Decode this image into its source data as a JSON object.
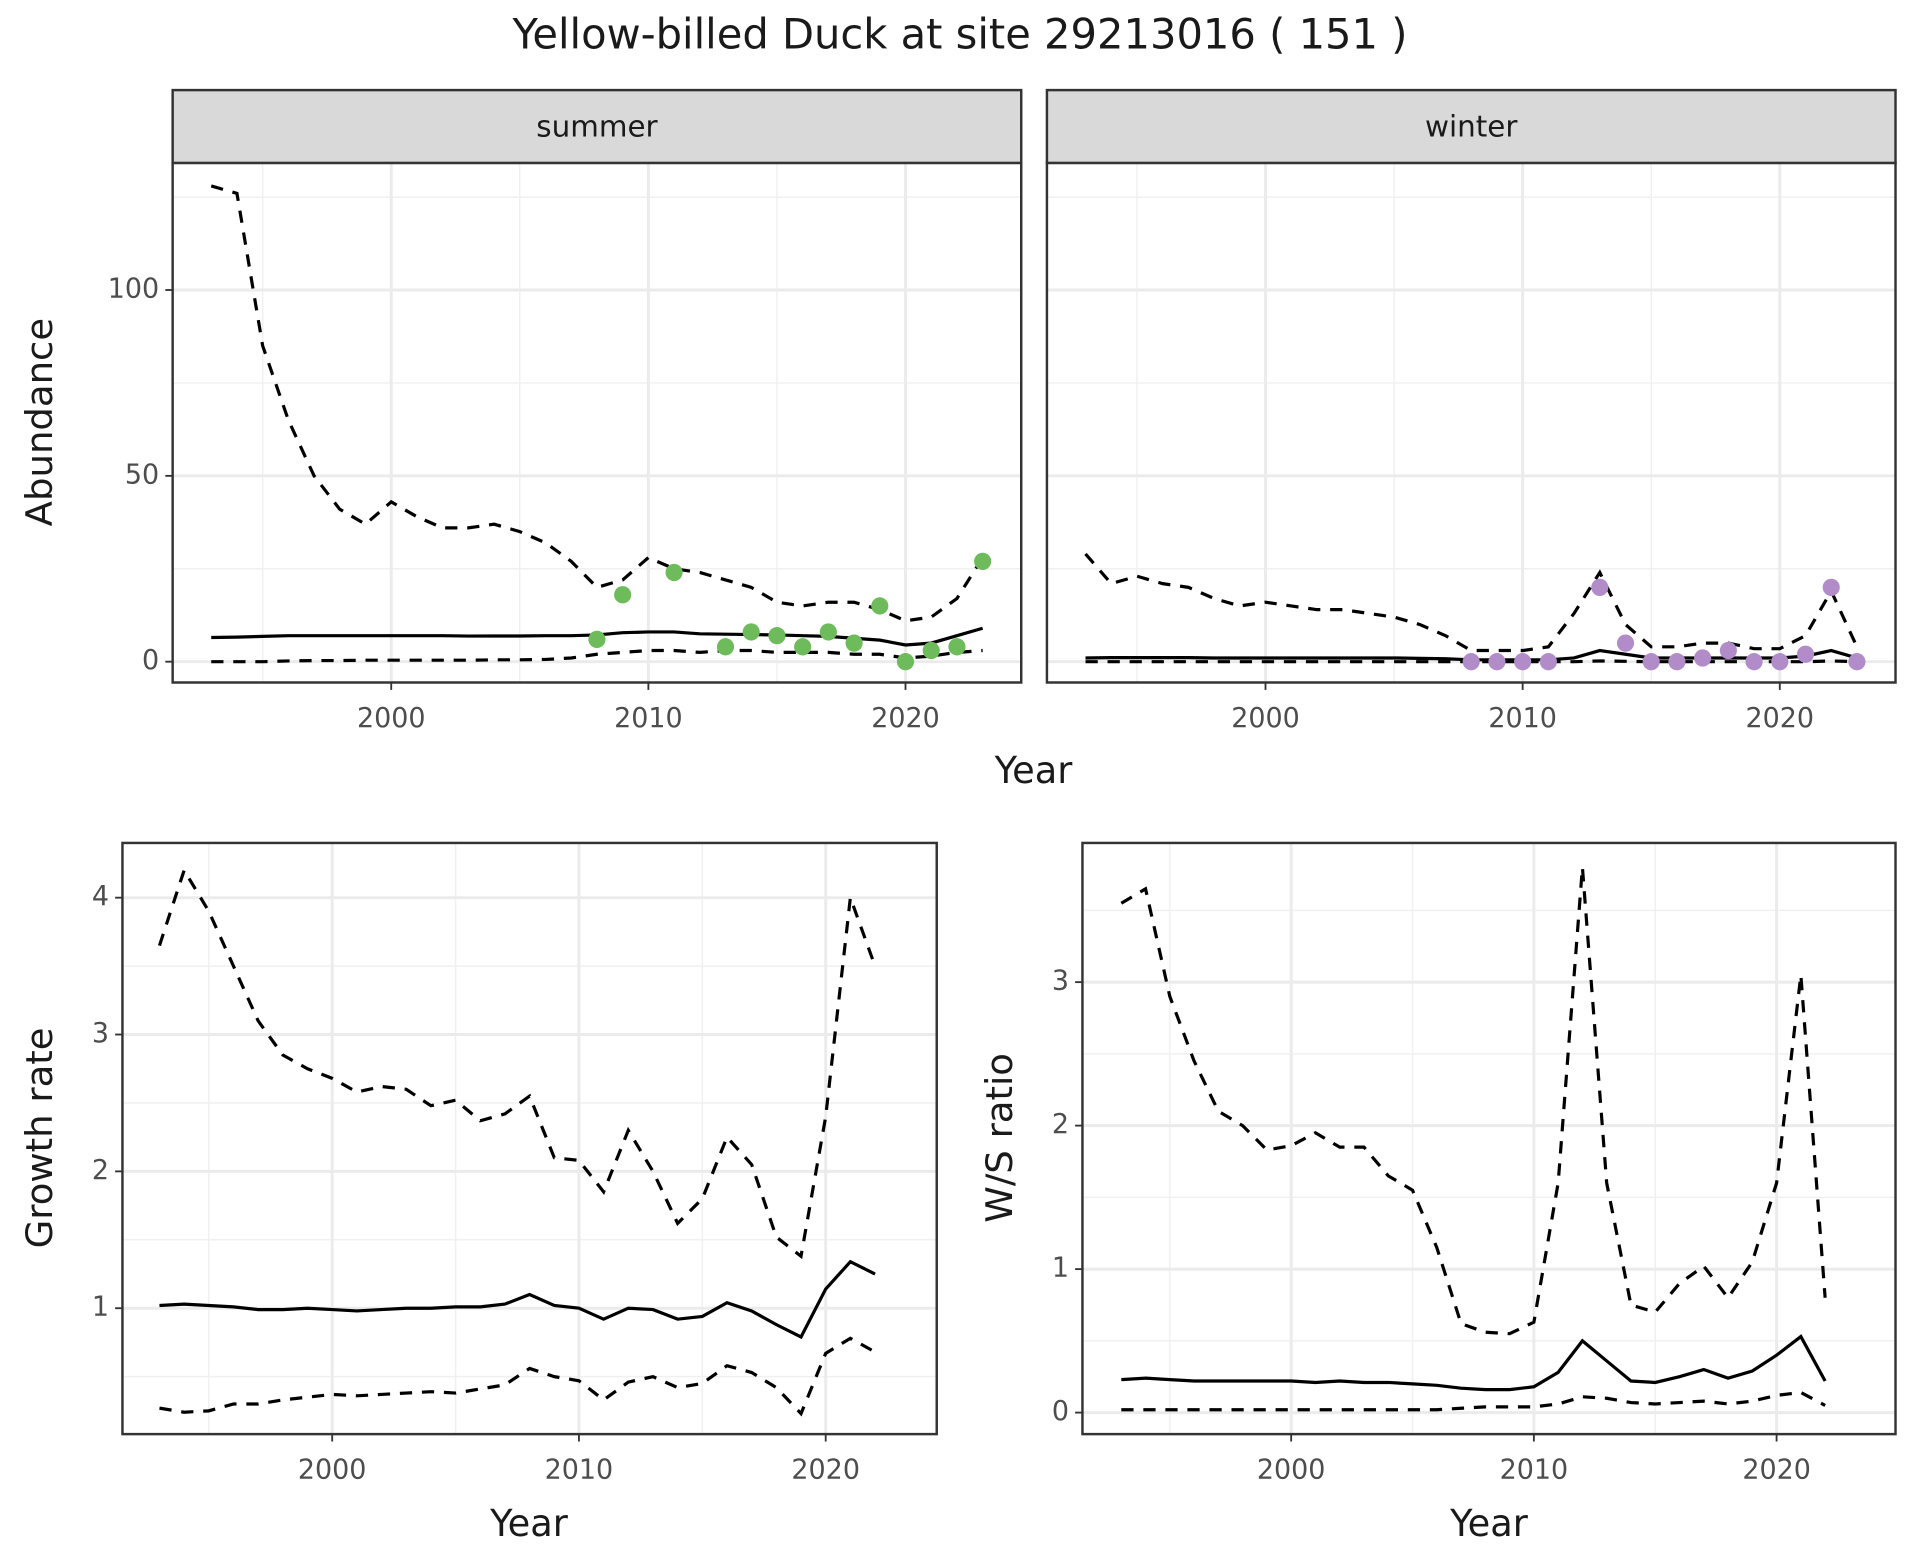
{
  "title": "Yellow-billed Duck at site 29213016 ( 151 )",
  "chart_data": [
    {
      "type": "line",
      "strip": "summer",
      "ylabel": "Abundance",
      "xlabel": "Year",
      "x": [
        1993,
        1994,
        1995,
        1996,
        1997,
        1998,
        1999,
        2000,
        2001,
        2002,
        2003,
        2004,
        2005,
        2006,
        2007,
        2008,
        2009,
        2010,
        2011,
        2012,
        2013,
        2014,
        2015,
        2016,
        2017,
        2018,
        2019,
        2020,
        2021,
        2022,
        2023
      ],
      "xlim": [
        1991.5,
        2024.5
      ],
      "xticks": [
        2000,
        2010,
        2020
      ],
      "xminor": [
        1995,
        2005,
        2015
      ],
      "ylim": [
        -5.6,
        134.2
      ],
      "yticks": [
        0,
        50,
        100
      ],
      "yminor": [
        25,
        75,
        125
      ],
      "grid": true,
      "series": [
        {
          "style": "dashed",
          "color": "#000000",
          "values": [
            128,
            126,
            85,
            65,
            50,
            41,
            37,
            43,
            39,
            36,
            36,
            37,
            35,
            32,
            27,
            20,
            22,
            28,
            25,
            24,
            22,
            20,
            16,
            15,
            16,
            16,
            14,
            11,
            12,
            17,
            28
          ]
        },
        {
          "style": "solid",
          "color": "#000000",
          "values": [
            6.5,
            6.6,
            6.8,
            7,
            7,
            7,
            7,
            7,
            7,
            7,
            6.9,
            6.9,
            6.9,
            7,
            7,
            7.2,
            7.8,
            8,
            8,
            7.5,
            7.4,
            7.3,
            7.2,
            7,
            6.8,
            6.3,
            5.8,
            4.5,
            5,
            7,
            9
          ]
        },
        {
          "style": "dashed",
          "color": "#000000",
          "values": [
            0,
            0,
            0,
            0.2,
            0.3,
            0.3,
            0.4,
            0.4,
            0.4,
            0.4,
            0.4,
            0.5,
            0.5,
            0.6,
            1,
            2,
            2.5,
            3,
            3,
            2.5,
            3,
            3,
            2.5,
            2.5,
            2.5,
            2,
            2,
            1,
            1.5,
            2.5,
            3
          ]
        },
        {
          "style": "points",
          "color": "#6dbb5a",
          "x": [
            2008,
            2009,
            2011,
            2013,
            2014,
            2015,
            2016,
            2017,
            2018,
            2019,
            2020,
            2021,
            2022,
            2023
          ],
          "values": [
            6,
            18,
            24,
            4,
            8,
            7,
            4,
            8,
            5,
            15,
            0,
            3,
            4,
            27
          ]
        }
      ]
    },
    {
      "type": "line",
      "strip": "winter",
      "x": [
        1993,
        1994,
        1995,
        1996,
        1997,
        1998,
        1999,
        2000,
        2001,
        2002,
        2003,
        2004,
        2005,
        2006,
        2007,
        2008,
        2009,
        2010,
        2011,
        2012,
        2013,
        2014,
        2015,
        2016,
        2017,
        2018,
        2019,
        2020,
        2021,
        2022,
        2023
      ],
      "xlim": [
        1991.5,
        2024.5
      ],
      "xticks": [
        2000,
        2010,
        2020
      ],
      "xminor": [
        1995,
        2005,
        2015
      ],
      "ylim": [
        -5.6,
        134.2
      ],
      "yminor": [
        25,
        75,
        125
      ],
      "ygrid": [
        0,
        50,
        100
      ],
      "grid": true,
      "series": [
        {
          "style": "dashed",
          "color": "#000000",
          "values": [
            29,
            21,
            23,
            21,
            20,
            17,
            15,
            16,
            15,
            14,
            14,
            13,
            12,
            10,
            7,
            3,
            3,
            3,
            4,
            13,
            24,
            10,
            4,
            4,
            5,
            5,
            3.5,
            3.5,
            7,
            19,
            4
          ]
        },
        {
          "style": "solid",
          "color": "#000000",
          "values": [
            1,
            1.1,
            1.1,
            1.1,
            1.1,
            1,
            1,
            1,
            1,
            1,
            1,
            1,
            1,
            0.9,
            0.8,
            0.5,
            0.5,
            0.5,
            0.5,
            1,
            3,
            2,
            1,
            1,
            1,
            1,
            1,
            1,
            1.5,
            3,
            1
          ]
        },
        {
          "style": "dashed",
          "color": "#000000",
          "values": [
            0,
            0,
            0,
            0,
            0,
            0,
            0,
            0,
            0,
            0,
            0,
            0,
            0,
            0,
            0,
            0,
            0,
            0,
            0,
            0,
            0.2,
            0.1,
            0,
            0,
            0,
            0,
            0,
            0,
            0,
            0.2,
            0
          ]
        },
        {
          "style": "points",
          "color": "#b18cc9",
          "x": [
            2008,
            2009,
            2010,
            2011,
            2013,
            2014,
            2015,
            2016,
            2017,
            2018,
            2019,
            2020,
            2021,
            2022,
            2023
          ],
          "values": [
            0,
            0,
            0,
            0,
            20,
            5,
            0,
            0,
            1,
            3,
            0,
            0,
            2,
            20,
            0
          ]
        }
      ]
    },
    {
      "type": "line",
      "ylabel": "Growth rate",
      "xlabel": "Year",
      "x": [
        1993,
        1994,
        1995,
        1996,
        1997,
        1998,
        1999,
        2000,
        2001,
        2002,
        2003,
        2004,
        2005,
        2006,
        2007,
        2008,
        2009,
        2010,
        2011,
        2012,
        2013,
        2014,
        2015,
        2016,
        2017,
        2018,
        2019,
        2020,
        2021,
        2022
      ],
      "xlim": [
        1991.5,
        2024.5
      ],
      "xticks": [
        2000,
        2010,
        2020
      ],
      "xminor": [
        1995,
        2005,
        2015
      ],
      "ylim": [
        0.08,
        4.4
      ],
      "yticks": [
        1,
        2,
        3,
        4
      ],
      "yminor": [
        0.5,
        1.5,
        2.5,
        3.5
      ],
      "grid": true,
      "series": [
        {
          "style": "dashed",
          "color": "#000000",
          "values": [
            3.65,
            4.2,
            3.9,
            3.5,
            3.1,
            2.85,
            2.75,
            2.68,
            2.58,
            2.62,
            2.6,
            2.48,
            2.52,
            2.37,
            2.42,
            2.55,
            2.1,
            2.08,
            1.85,
            2.3,
            2.0,
            1.62,
            1.8,
            2.25,
            2.05,
            1.52,
            1.38,
            2.4,
            4.0,
            3.5
          ]
        },
        {
          "style": "solid",
          "color": "#000000",
          "values": [
            1.02,
            1.03,
            1.02,
            1.01,
            0.99,
            0.99,
            1.0,
            0.99,
            0.98,
            0.99,
            1.0,
            1.0,
            1.01,
            1.01,
            1.03,
            1.1,
            1.02,
            1.0,
            0.92,
            1.0,
            0.99,
            0.92,
            0.94,
            1.04,
            0.98,
            0.88,
            0.79,
            1.14,
            1.34,
            1.25
          ]
        },
        {
          "style": "dashed",
          "color": "#000000",
          "values": [
            0.27,
            0.24,
            0.25,
            0.3,
            0.3,
            0.33,
            0.35,
            0.37,
            0.36,
            0.37,
            0.38,
            0.39,
            0.38,
            0.41,
            0.44,
            0.56,
            0.5,
            0.47,
            0.33,
            0.46,
            0.5,
            0.42,
            0.45,
            0.58,
            0.53,
            0.42,
            0.23,
            0.67,
            0.78,
            0.68
          ]
        }
      ]
    },
    {
      "type": "line",
      "ylabel": "W/S ratio",
      "xlabel": "Year",
      "x": [
        1993,
        1994,
        1995,
        1996,
        1997,
        1998,
        1999,
        2000,
        2001,
        2002,
        2003,
        2004,
        2005,
        2006,
        2007,
        2008,
        2009,
        2010,
        2011,
        2012,
        2013,
        2014,
        2015,
        2016,
        2017,
        2018,
        2019,
        2020,
        2021,
        2022
      ],
      "xlim": [
        1991.4,
        2024.9
      ],
      "xticks": [
        2000,
        2010,
        2020
      ],
      "xminor": [
        1995,
        2005,
        2015
      ],
      "ylim": [
        -0.15,
        3.97
      ],
      "yticks": [
        0,
        1,
        2,
        3
      ],
      "yminor": [
        0.5,
        1.5,
        2.5,
        3.5
      ],
      "grid": true,
      "series": [
        {
          "style": "dashed",
          "color": "#000000",
          "values": [
            3.55,
            3.65,
            2.9,
            2.45,
            2.1,
            2.0,
            1.83,
            1.86,
            1.95,
            1.85,
            1.85,
            1.65,
            1.55,
            1.15,
            0.62,
            0.56,
            0.55,
            0.63,
            1.6,
            3.8,
            1.6,
            0.75,
            0.7,
            0.9,
            1.02,
            0.8,
            1.05,
            1.6,
            3.05,
            0.8
          ]
        },
        {
          "style": "solid",
          "color": "#000000",
          "values": [
            0.23,
            0.24,
            0.23,
            0.22,
            0.22,
            0.22,
            0.22,
            0.22,
            0.21,
            0.22,
            0.21,
            0.21,
            0.2,
            0.19,
            0.17,
            0.16,
            0.16,
            0.18,
            0.28,
            0.5,
            0.36,
            0.22,
            0.21,
            0.25,
            0.3,
            0.24,
            0.29,
            0.4,
            0.53,
            0.22
          ]
        },
        {
          "style": "dashed",
          "color": "#000000",
          "values": [
            0.02,
            0.02,
            0.02,
            0.02,
            0.02,
            0.02,
            0.02,
            0.02,
            0.02,
            0.02,
            0.02,
            0.02,
            0.02,
            0.02,
            0.03,
            0.04,
            0.04,
            0.04,
            0.06,
            0.11,
            0.1,
            0.07,
            0.06,
            0.07,
            0.08,
            0.06,
            0.08,
            0.12,
            0.14,
            0.05
          ]
        }
      ]
    }
  ]
}
